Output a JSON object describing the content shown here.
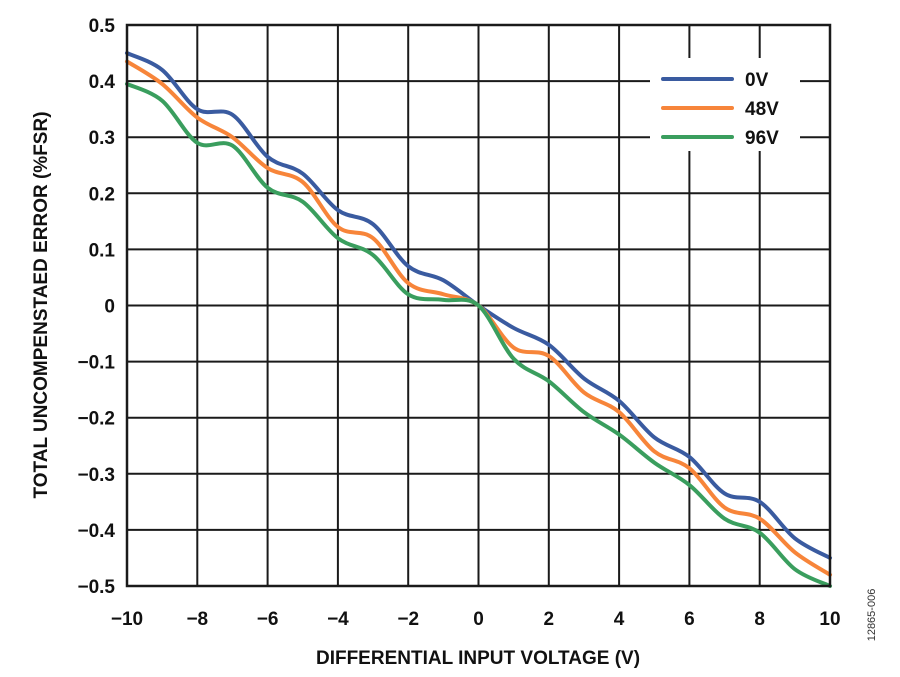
{
  "chart_data": {
    "type": "line",
    "xlabel": "DIFFERENTIAL INPUT VOLTAGE (V)",
    "ylabel": "TOTAL UNCOMPENSTAED ERROR  (%FSR)",
    "xlim": [
      -10,
      10
    ],
    "ylim": [
      -0.5,
      0.5
    ],
    "x_ticks": [
      -10,
      -8,
      -6,
      -4,
      -2,
      0,
      2,
      4,
      6,
      8,
      10
    ],
    "x_tick_labels": [
      "−10",
      "−8",
      "−6",
      "−4",
      "−2",
      "0",
      "2",
      "4",
      "6",
      "8",
      "10"
    ],
    "y_ticks": [
      0.5,
      0.4,
      0.3,
      0.2,
      0.1,
      0,
      -0.1,
      -0.2,
      -0.3,
      -0.4,
      -0.5
    ],
    "y_tick_labels": [
      "0.5",
      "0.4",
      "0.3",
      "0.2",
      "0.1",
      "0",
      "−0.1",
      "−0.2",
      "−0.3",
      "−0.4",
      "−0.5"
    ],
    "grid": true,
    "legend_position": "top-right",
    "figure_id": "12865-006",
    "series": [
      {
        "name": "0V",
        "color": "#3a5ba0",
        "x": [
          -10,
          -9,
          -8,
          -7,
          -6,
          -5,
          -4,
          -3,
          -2,
          -1,
          0,
          1,
          2,
          3,
          4,
          5,
          6,
          7,
          8,
          9,
          10
        ],
        "y": [
          0.45,
          0.42,
          0.35,
          0.34,
          0.265,
          0.235,
          0.17,
          0.145,
          0.07,
          0.045,
          0.0,
          -0.04,
          -0.07,
          -0.13,
          -0.17,
          -0.235,
          -0.27,
          -0.335,
          -0.35,
          -0.415,
          -0.45
        ]
      },
      {
        "name": "48V",
        "color": "#f7853a",
        "x": [
          -10,
          -9,
          -8,
          -7,
          -6,
          -5,
          -4,
          -3,
          -2,
          -1,
          0,
          1,
          2,
          3,
          4,
          5,
          6,
          7,
          8,
          9,
          10
        ],
        "y": [
          0.435,
          0.395,
          0.335,
          0.3,
          0.245,
          0.22,
          0.14,
          0.12,
          0.04,
          0.02,
          0.0,
          -0.075,
          -0.09,
          -0.155,
          -0.19,
          -0.26,
          -0.29,
          -0.36,
          -0.38,
          -0.44,
          -0.48
        ]
      },
      {
        "name": "96V",
        "color": "#3a9e5e",
        "x": [
          -10,
          -9,
          -8,
          -7,
          -6,
          -5,
          -4,
          -3,
          -2,
          -1,
          0,
          1,
          2,
          3,
          4,
          5,
          6,
          7,
          8,
          9,
          10
        ],
        "y": [
          0.395,
          0.365,
          0.29,
          0.285,
          0.21,
          0.185,
          0.12,
          0.09,
          0.02,
          0.01,
          0.0,
          -0.095,
          -0.135,
          -0.19,
          -0.23,
          -0.28,
          -0.32,
          -0.38,
          -0.405,
          -0.47,
          -0.5
        ]
      }
    ]
  }
}
